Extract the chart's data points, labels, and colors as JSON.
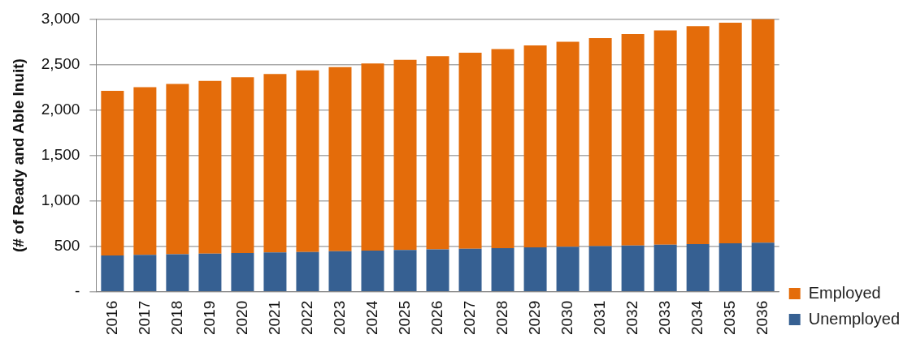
{
  "chart_data": {
    "type": "bar",
    "stacked": true,
    "ylabel": "(# of Ready and Able Inuit)",
    "categories": [
      "2016",
      "2017",
      "2018",
      "2019",
      "2020",
      "2021",
      "2022",
      "2023",
      "2024",
      "2025",
      "2026",
      "2027",
      "2028",
      "2029",
      "2030",
      "2031",
      "2032",
      "2033",
      "2034",
      "2035",
      "2036"
    ],
    "series": [
      {
        "name": "Unemployed",
        "color": "#366092",
        "values": [
          400,
          405,
          412,
          418,
          425,
          432,
          438,
          445,
          452,
          460,
          466,
          473,
          480,
          488,
          495,
          502,
          509,
          517,
          524,
          532,
          540
        ]
      },
      {
        "name": "Employed",
        "color": "#e46c0a",
        "values": [
          1810,
          1845,
          1873,
          1902,
          1935,
          1963,
          1997,
          2025,
          2058,
          2090,
          2124,
          2157,
          2190,
          2222,
          2255,
          2288,
          2326,
          2358,
          2396,
          2428,
          2460
        ]
      }
    ],
    "ylim": [
      0,
      3000
    ],
    "yticks": [
      {
        "value": 0,
        "label": "-"
      },
      {
        "value": 500,
        "label": "500"
      },
      {
        "value": 1000,
        "label": "1,000"
      },
      {
        "value": 1500,
        "label": "1,500"
      },
      {
        "value": 2000,
        "label": "2,000"
      },
      {
        "value": 2500,
        "label": "2,500"
      },
      {
        "value": 3000,
        "label": "3,000"
      }
    ],
    "grid": "y",
    "legend": "bottom right"
  }
}
